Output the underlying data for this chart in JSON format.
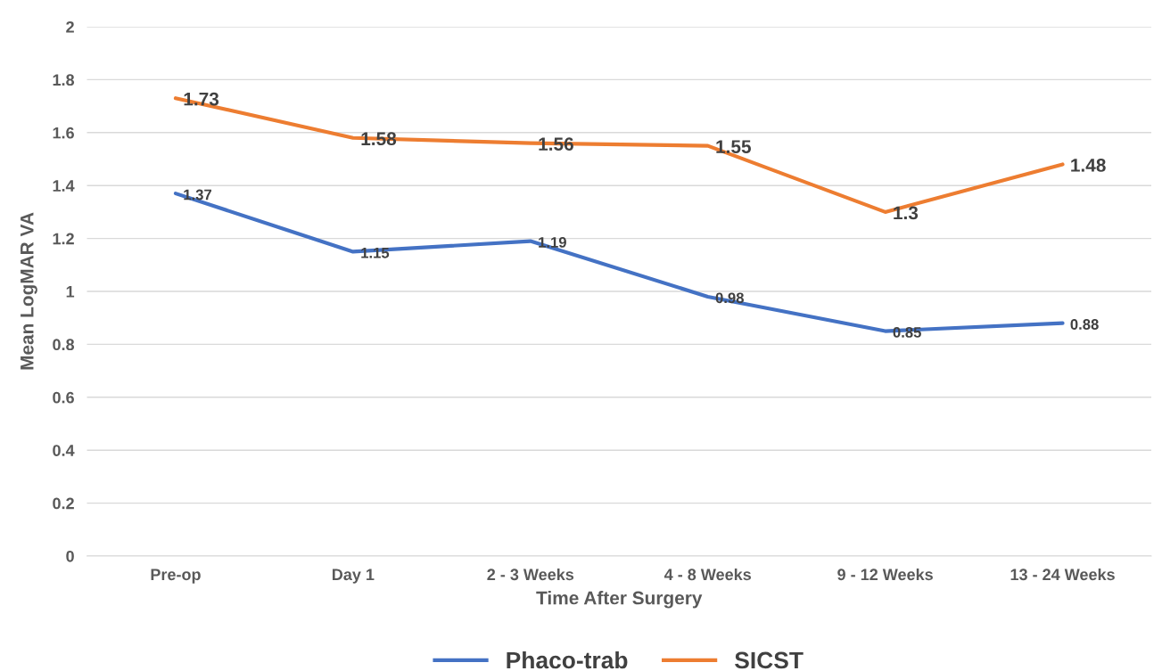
{
  "chart_data": {
    "type": "line",
    "xlabel": "Time After Surgery",
    "ylabel": "Mean LogMAR VA",
    "categories": [
      "Pre-op",
      "Day 1",
      "2 - 3 Weeks",
      "4 - 8 Weeks",
      "9 - 12 Weeks",
      "13 - 24 Weeks"
    ],
    "series": [
      {
        "name": "Phaco-trab",
        "color": "#4472c4",
        "values": [
          1.37,
          1.15,
          1.19,
          0.98,
          0.85,
          0.88
        ]
      },
      {
        "name": "SICST",
        "color": "#ed7d31",
        "values": [
          1.73,
          1.58,
          1.56,
          1.55,
          1.3,
          1.48
        ]
      }
    ],
    "ylim": [
      0,
      2
    ],
    "yticks": [
      0,
      0.2,
      0.4,
      0.6,
      0.8,
      1,
      1.2,
      1.4,
      1.6,
      1.8,
      2
    ],
    "grid": "y",
    "legend": "bottom",
    "data_labels": true,
    "marker": "none",
    "line_style": "solid"
  }
}
